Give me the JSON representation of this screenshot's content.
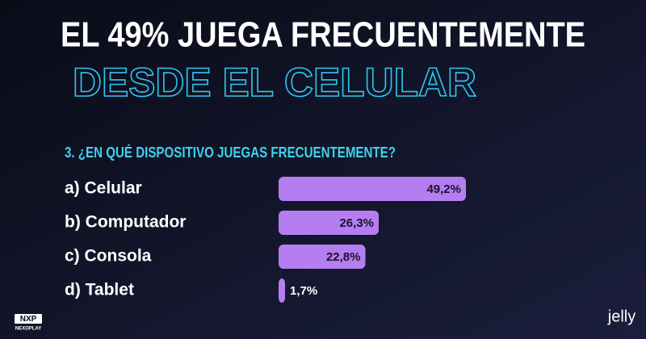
{
  "chart_data": {
    "type": "bar",
    "orientation": "horizontal",
    "title": "EL 49% JUEGA FRECUENTEMENTE",
    "subtitle": "DESDE EL CELULAR",
    "question": "3. ¿EN QUÉ DISPOSITIVO JUEGAS FRECUENTEMENTE?",
    "categories": [
      "a) Celular",
      "b) Computador",
      "c) Consola",
      "d) Tablet"
    ],
    "values": [
      49.2,
      26.3,
      22.8,
      1.7
    ],
    "value_labels": [
      "49,2%",
      "26,3%",
      "22,8%",
      "1,7%"
    ],
    "color": "#b57ef0"
  },
  "logos": {
    "left": "NXP",
    "left_sub": "NEXOPLAY",
    "right": "jelly"
  }
}
